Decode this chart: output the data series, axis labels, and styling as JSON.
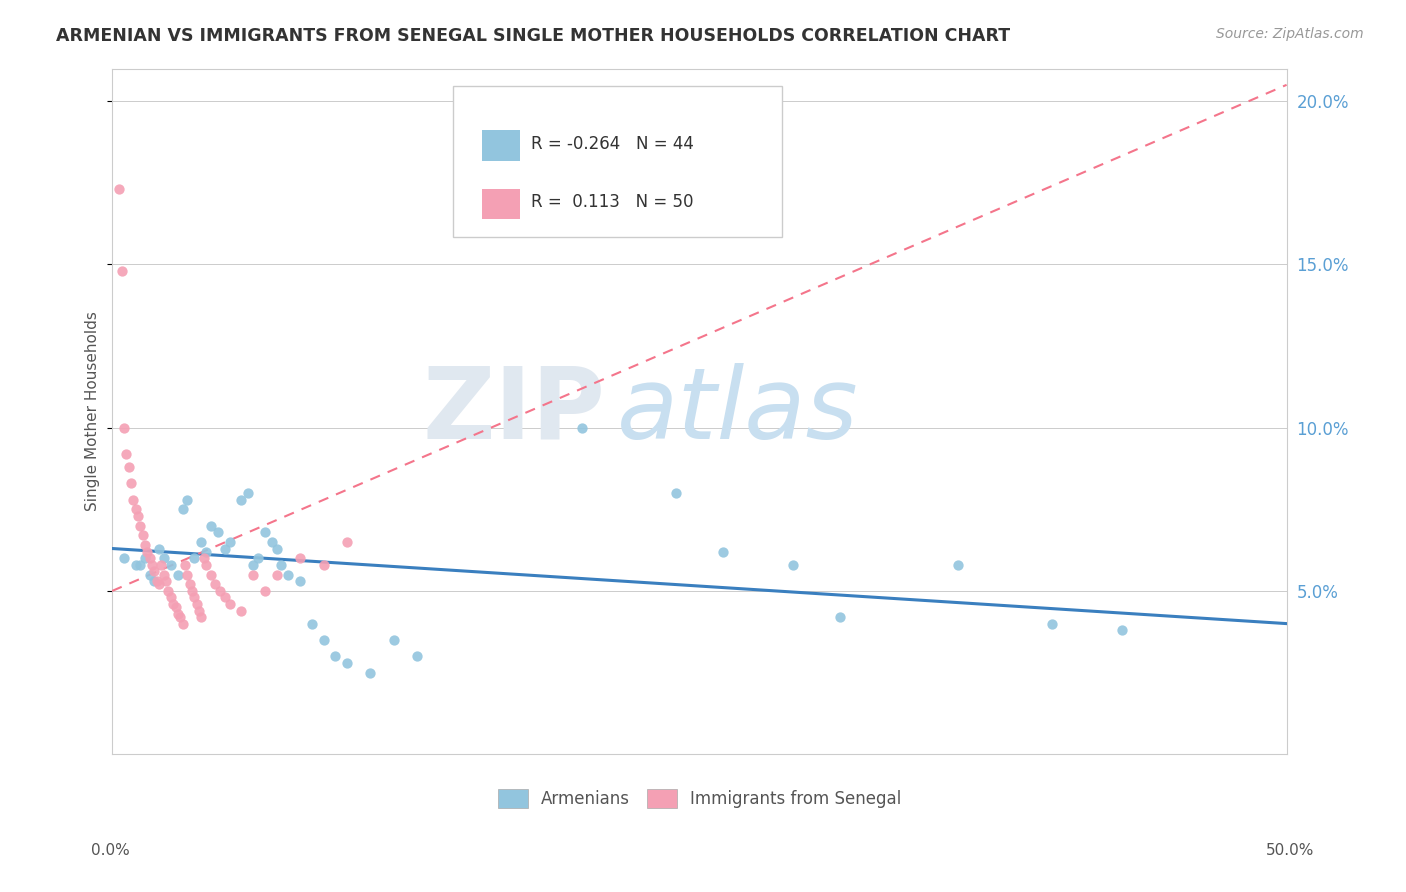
{
  "title": "ARMENIAN VS IMMIGRANTS FROM SENEGAL SINGLE MOTHER HOUSEHOLDS CORRELATION CHART",
  "source": "Source: ZipAtlas.com",
  "ylabel": "Single Mother Households",
  "xlim": [
    0.0,
    0.5
  ],
  "ylim": [
    0.0,
    0.21
  ],
  "yticks": [
    0.05,
    0.1,
    0.15,
    0.2
  ],
  "ytick_labels": [
    "5.0%",
    "10.0%",
    "15.0%",
    "20.0%"
  ],
  "legend_arm_R": "-0.264",
  "legend_arm_N": "44",
  "legend_sen_R": "0.113",
  "legend_sen_N": "50",
  "armenian_color": "#92c5de",
  "senegal_color": "#f4a0b4",
  "trendline_armenian_color": "#3a7fbf",
  "trendline_senegal_color": "#f4758b",
  "armenian_trend_x0": 0.0,
  "armenian_trend_y0": 0.063,
  "armenian_trend_x1": 0.5,
  "armenian_trend_y1": 0.04,
  "senegal_trend_x0": 0.0,
  "senegal_trend_y0": 0.05,
  "senegal_trend_x1": 0.5,
  "senegal_trend_y1": 0.205,
  "armenian_scatter": [
    [
      0.005,
      0.06
    ],
    [
      0.01,
      0.058
    ],
    [
      0.012,
      0.058
    ],
    [
      0.014,
      0.06
    ],
    [
      0.016,
      0.055
    ],
    [
      0.018,
      0.053
    ],
    [
      0.02,
      0.063
    ],
    [
      0.022,
      0.06
    ],
    [
      0.025,
      0.058
    ],
    [
      0.028,
      0.055
    ],
    [
      0.03,
      0.075
    ],
    [
      0.032,
      0.078
    ],
    [
      0.035,
      0.06
    ],
    [
      0.038,
      0.065
    ],
    [
      0.04,
      0.062
    ],
    [
      0.042,
      0.07
    ],
    [
      0.045,
      0.068
    ],
    [
      0.048,
      0.063
    ],
    [
      0.05,
      0.065
    ],
    [
      0.055,
      0.078
    ],
    [
      0.058,
      0.08
    ],
    [
      0.06,
      0.058
    ],
    [
      0.062,
      0.06
    ],
    [
      0.065,
      0.068
    ],
    [
      0.068,
      0.065
    ],
    [
      0.07,
      0.063
    ],
    [
      0.072,
      0.058
    ],
    [
      0.075,
      0.055
    ],
    [
      0.08,
      0.053
    ],
    [
      0.085,
      0.04
    ],
    [
      0.09,
      0.035
    ],
    [
      0.095,
      0.03
    ],
    [
      0.1,
      0.028
    ],
    [
      0.11,
      0.025
    ],
    [
      0.12,
      0.035
    ],
    [
      0.13,
      0.03
    ],
    [
      0.2,
      0.1
    ],
    [
      0.24,
      0.08
    ],
    [
      0.26,
      0.062
    ],
    [
      0.29,
      0.058
    ],
    [
      0.31,
      0.042
    ],
    [
      0.36,
      0.058
    ],
    [
      0.4,
      0.04
    ],
    [
      0.43,
      0.038
    ]
  ],
  "senegal_scatter": [
    [
      0.003,
      0.173
    ],
    [
      0.004,
      0.148
    ],
    [
      0.005,
      0.1
    ],
    [
      0.006,
      0.092
    ],
    [
      0.007,
      0.088
    ],
    [
      0.008,
      0.083
    ],
    [
      0.009,
      0.078
    ],
    [
      0.01,
      0.075
    ],
    [
      0.011,
      0.073
    ],
    [
      0.012,
      0.07
    ],
    [
      0.013,
      0.067
    ],
    [
      0.014,
      0.064
    ],
    [
      0.015,
      0.062
    ],
    [
      0.016,
      0.06
    ],
    [
      0.017,
      0.058
    ],
    [
      0.018,
      0.056
    ],
    [
      0.019,
      0.053
    ],
    [
      0.02,
      0.052
    ],
    [
      0.021,
      0.058
    ],
    [
      0.022,
      0.055
    ],
    [
      0.023,
      0.053
    ],
    [
      0.024,
      0.05
    ],
    [
      0.025,
      0.048
    ],
    [
      0.026,
      0.046
    ],
    [
      0.027,
      0.045
    ],
    [
      0.028,
      0.043
    ],
    [
      0.029,
      0.042
    ],
    [
      0.03,
      0.04
    ],
    [
      0.031,
      0.058
    ],
    [
      0.032,
      0.055
    ],
    [
      0.033,
      0.052
    ],
    [
      0.034,
      0.05
    ],
    [
      0.035,
      0.048
    ],
    [
      0.036,
      0.046
    ],
    [
      0.037,
      0.044
    ],
    [
      0.038,
      0.042
    ],
    [
      0.039,
      0.06
    ],
    [
      0.04,
      0.058
    ],
    [
      0.042,
      0.055
    ],
    [
      0.044,
      0.052
    ],
    [
      0.046,
      0.05
    ],
    [
      0.048,
      0.048
    ],
    [
      0.05,
      0.046
    ],
    [
      0.055,
      0.044
    ],
    [
      0.06,
      0.055
    ],
    [
      0.065,
      0.05
    ],
    [
      0.07,
      0.055
    ],
    [
      0.08,
      0.06
    ],
    [
      0.09,
      0.058
    ],
    [
      0.1,
      0.065
    ]
  ]
}
